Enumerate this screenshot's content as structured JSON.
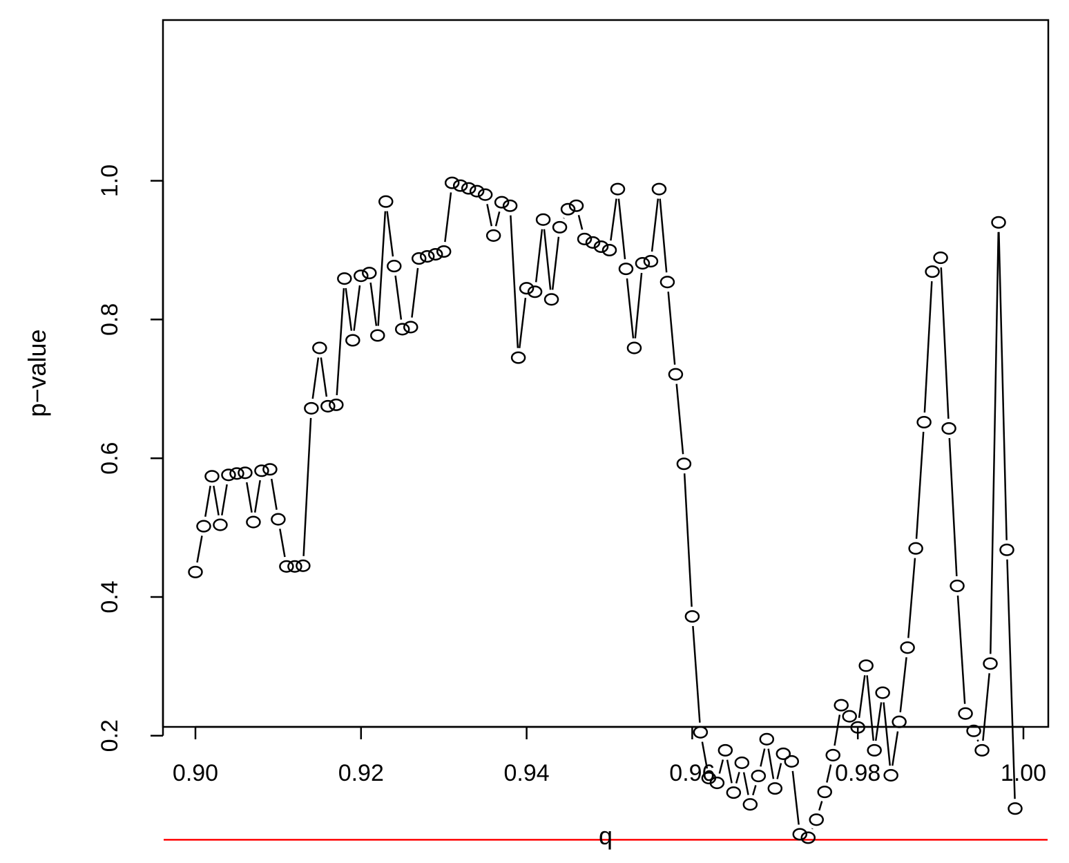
{
  "chart_data": {
    "type": "scatter",
    "style": "points-and-lines",
    "xlabel": "q",
    "ylabel": "p−value",
    "xlim": [
      0.9,
      1.0
    ],
    "ylim": [
      0.05,
      1.0
    ],
    "x_ticks": [
      0.9,
      0.92,
      0.94,
      0.96,
      0.98,
      1.0
    ],
    "x_tick_labels": [
      "0.90",
      "0.92",
      "0.94",
      "0.96",
      "0.98",
      "1.00"
    ],
    "y_ticks": [
      0.2,
      0.4,
      0.6,
      0.8,
      1.0
    ],
    "y_tick_labels": [
      "0.2",
      "0.4",
      "0.6",
      "0.8",
      "1.0"
    ],
    "grid": false,
    "series_color": "#000000",
    "reference_line": {
      "y": 0.05,
      "color": "#ff0000"
    },
    "x": [
      0.9,
      0.901,
      0.902,
      0.903,
      0.904,
      0.905,
      0.906,
      0.907,
      0.908,
      0.909,
      0.91,
      0.911,
      0.912,
      0.913,
      0.914,
      0.915,
      0.916,
      0.917,
      0.918,
      0.919,
      0.92,
      0.921,
      0.922,
      0.923,
      0.924,
      0.925,
      0.926,
      0.927,
      0.928,
      0.929,
      0.93,
      0.931,
      0.932,
      0.933,
      0.934,
      0.935,
      0.936,
      0.937,
      0.938,
      0.939,
      0.94,
      0.941,
      0.942,
      0.943,
      0.944,
      0.945,
      0.946,
      0.947,
      0.948,
      0.949,
      0.95,
      0.951,
      0.952,
      0.953,
      0.954,
      0.955,
      0.956,
      0.957,
      0.958,
      0.959,
      0.96,
      0.961,
      0.962,
      0.963,
      0.964,
      0.965,
      0.966,
      0.967,
      0.968,
      0.969,
      0.97,
      0.971,
      0.972,
      0.973,
      0.974,
      0.975,
      0.976,
      0.977,
      0.978,
      0.979,
      0.98,
      0.981,
      0.982,
      0.983,
      0.984,
      0.985,
      0.986,
      0.987,
      0.988,
      0.989,
      0.99,
      0.991,
      0.992,
      0.993,
      0.994,
      0.995,
      0.996,
      0.997,
      0.998,
      0.999
    ],
    "y": [
      0.436,
      0.502,
      0.574,
      0.504,
      0.576,
      0.578,
      0.579,
      0.508,
      0.582,
      0.584,
      0.512,
      0.444,
      0.444,
      0.445,
      0.672,
      0.759,
      0.675,
      0.677,
      0.859,
      0.77,
      0.863,
      0.867,
      0.777,
      0.97,
      0.877,
      0.786,
      0.789,
      0.888,
      0.891,
      0.894,
      0.898,
      0.997,
      0.993,
      0.989,
      0.985,
      0.98,
      0.921,
      0.969,
      0.964,
      0.745,
      0.845,
      0.84,
      0.944,
      0.829,
      0.933,
      0.959,
      0.964,
      0.916,
      0.911,
      0.905,
      0.9,
      0.988,
      0.873,
      0.759,
      0.881,
      0.884,
      0.988,
      0.854,
      0.721,
      0.592,
      0.372,
      0.205,
      0.139,
      0.132,
      0.179,
      0.118,
      0.161,
      0.101,
      0.142,
      0.195,
      0.124,
      0.174,
      0.163,
      0.058,
      0.053,
      0.079,
      0.119,
      0.172,
      0.244,
      0.228,
      0.212,
      0.301,
      0.179,
      0.262,
      0.143,
      0.22,
      0.327,
      0.47,
      0.652,
      0.869,
      0.889,
      0.643,
      0.416,
      0.232,
      0.207,
      0.179,
      0.304,
      0.94,
      0.468,
      0.095
    ]
  }
}
